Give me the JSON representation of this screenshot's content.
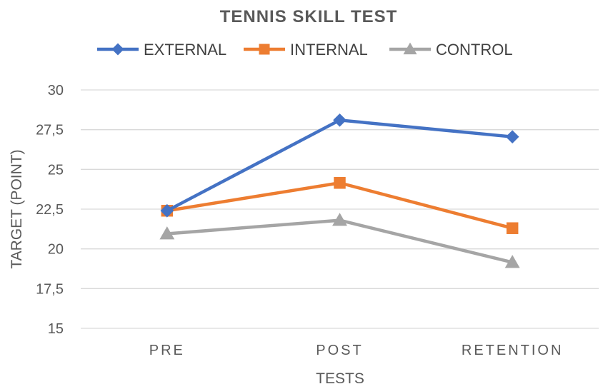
{
  "chart_data": {
    "type": "line",
    "title": "TENNIS SKILL TEST",
    "xlabel": "TESTS",
    "ylabel": "TARGET (POINT)",
    "categories": [
      "PRE",
      "POST",
      "RETENTION"
    ],
    "ylim": [
      15,
      30
    ],
    "yticks": [
      "15",
      "17,5",
      "20",
      "22,5",
      "25",
      "27,5",
      "30"
    ],
    "ytick_values": [
      15,
      17.5,
      20,
      22.5,
      25,
      27.5,
      30
    ],
    "grid": true,
    "legend_position": "top",
    "series": [
      {
        "name": "EXTERNAL",
        "values": [
          22.4,
          28.1,
          27.05
        ],
        "color": "#4472C4",
        "marker": "diamond"
      },
      {
        "name": "INTERNAL",
        "values": [
          22.4,
          24.15,
          21.3
        ],
        "color": "#ED7D31",
        "marker": "square"
      },
      {
        "name": "CONTROL",
        "values": [
          20.95,
          21.8,
          19.15
        ],
        "color": "#A5A5A5",
        "marker": "triangle"
      }
    ]
  }
}
